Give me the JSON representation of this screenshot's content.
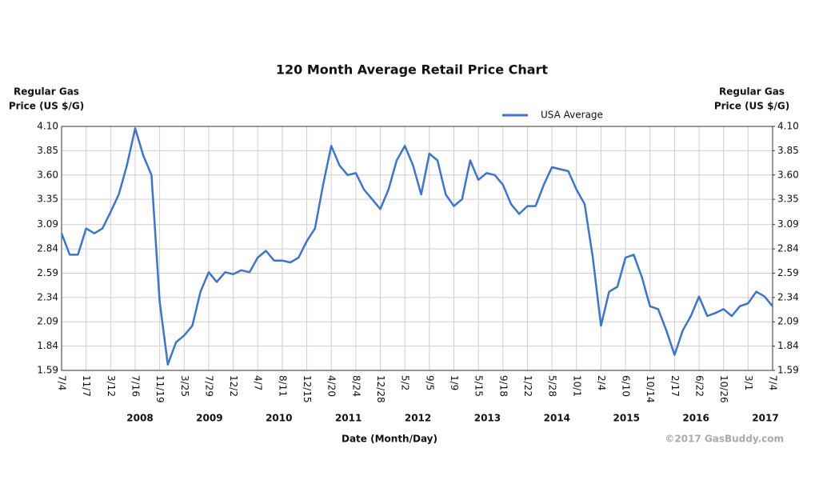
{
  "chart_data": {
    "type": "line",
    "title": "120 Month Average Retail Price Chart",
    "ylabel": [
      "Regular Gas",
      "Price (US $/G)"
    ],
    "y2label": [
      "Regular Gas",
      "Price (US $/G)"
    ],
    "xlabel": "Date (Month/Day)",
    "source": "©2017 GasBuddy.com",
    "x_groups": [
      "2008",
      "2009",
      "2010",
      "2011",
      "2012",
      "2013",
      "2014",
      "2015",
      "2016",
      "2017"
    ],
    "categories": [
      "7/4",
      null,
      null,
      "11/7",
      null,
      null,
      "3/12",
      null,
      null,
      "7/16",
      null,
      null,
      "11/19",
      null,
      null,
      "3/25",
      null,
      null,
      "7/29",
      null,
      null,
      "12/2",
      null,
      null,
      "4/7",
      null,
      null,
      "8/11",
      null,
      null,
      "12/15",
      null,
      null,
      "4/20",
      null,
      null,
      "8/24",
      null,
      null,
      "12/28",
      null,
      null,
      "5/2",
      null,
      null,
      "9/5",
      null,
      null,
      "1/9",
      null,
      null,
      "5/15",
      null,
      null,
      "9/18",
      null,
      null,
      "1/22",
      null,
      null,
      "5/28",
      null,
      null,
      "10/1",
      null,
      null,
      "2/4",
      null,
      null,
      "6/10",
      null,
      null,
      "10/14",
      null,
      null,
      "2/17",
      null,
      null,
      "6/22",
      null,
      null,
      "10/26",
      null,
      null,
      "3/1",
      null,
      null,
      "7/4"
    ],
    "series": [
      {
        "name": "USA Average",
        "color": "#3a75d4",
        "values": [
          3.0,
          2.78,
          2.78,
          3.05,
          3.0,
          3.05,
          3.22,
          3.4,
          3.7,
          4.08,
          3.8,
          3.6,
          2.3,
          1.65,
          1.88,
          1.95,
          2.05,
          2.4,
          2.6,
          2.5,
          2.6,
          2.58,
          2.62,
          2.6,
          2.75,
          2.82,
          2.72,
          2.72,
          2.7,
          2.75,
          2.92,
          3.05,
          3.5,
          3.9,
          3.7,
          3.6,
          3.62,
          3.45,
          3.35,
          3.25,
          3.45,
          3.75,
          3.9,
          3.7,
          3.4,
          3.82,
          3.75,
          3.4,
          3.28,
          3.35,
          3.75,
          3.55,
          3.62,
          3.6,
          3.5,
          3.3,
          3.2,
          3.28,
          3.28,
          3.5,
          3.68,
          3.66,
          3.64,
          3.45,
          3.3,
          2.75,
          2.05,
          2.4,
          2.45,
          2.75,
          2.78,
          2.55,
          2.25,
          2.22,
          2.0,
          1.75,
          2.0,
          2.15,
          2.35,
          2.15,
          2.18,
          2.22,
          2.15,
          2.25,
          2.28,
          2.4,
          2.35,
          2.25
        ]
      }
    ],
    "ylim": [
      1.59,
      4.1
    ],
    "yticks": [
      1.59,
      1.84,
      2.09,
      2.34,
      2.59,
      2.84,
      3.09,
      3.35,
      {
        "value": 3.6,
        "label": "3.60"
      },
      3.85,
      {
        "value": 4.1,
        "label": "4.10"
      }
    ],
    "y2lim": [
      1.59,
      4.1
    ],
    "y2ticks": [
      1.59,
      1.84,
      2.09,
      2.34,
      2.59,
      2.84,
      3.09,
      3.35,
      {
        "value": 3.6,
        "label": "3.60"
      },
      3.85,
      {
        "value": 4.1,
        "label": "4.10"
      }
    ],
    "grid": true
  }
}
